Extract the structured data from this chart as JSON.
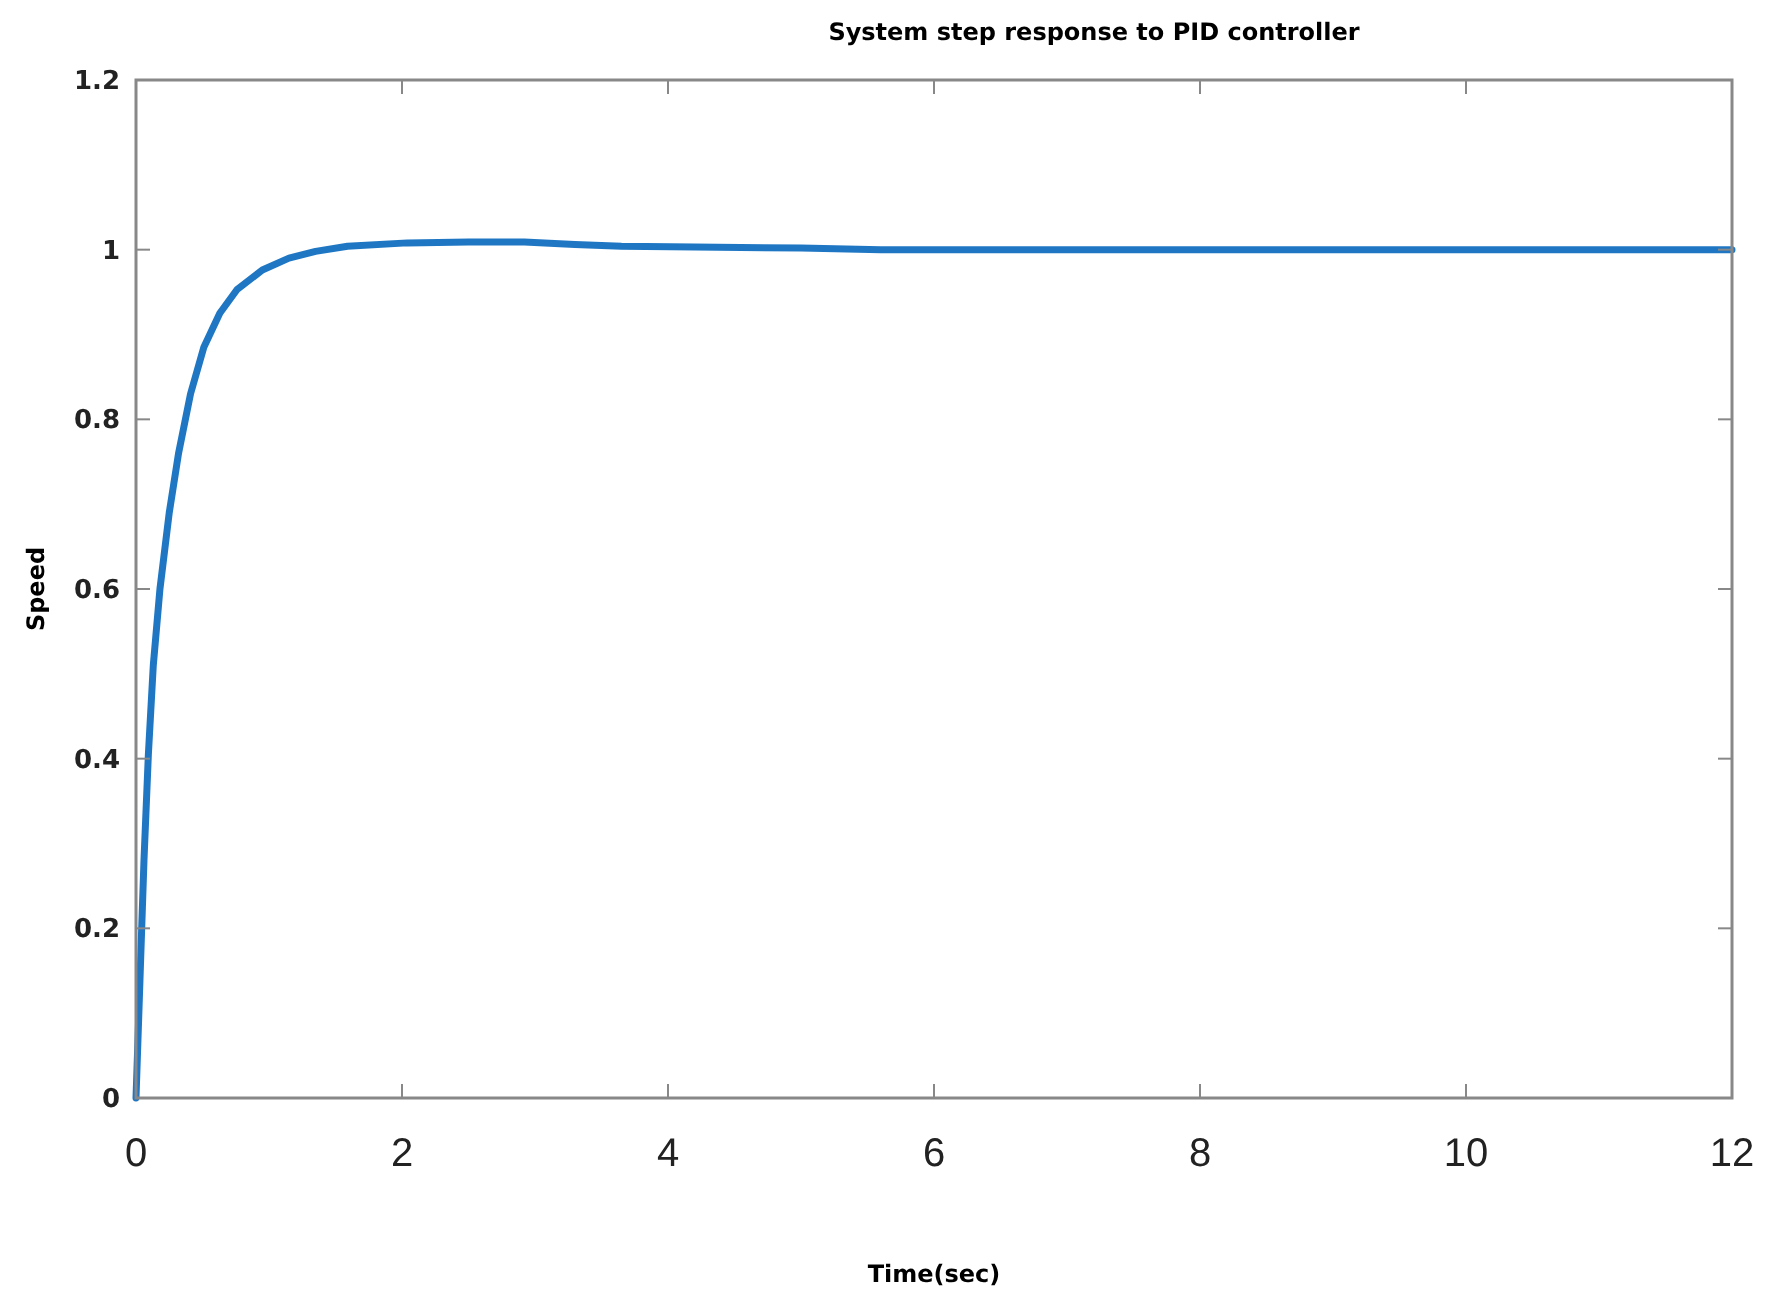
{
  "chart_data": {
    "type": "line",
    "title": "System step response to PID controller",
    "xlabel": "Time(sec)",
    "ylabel": "Speed",
    "series": [
      {
        "color": "#1f77c4",
        "x": [
          0,
          0.03,
          0.06,
          0.093,
          0.13,
          0.18,
          0.25,
          0.32,
          0.41,
          0.51,
          0.63,
          0.76,
          0.95,
          1.15,
          1.35,
          1.59,
          2.04,
          2.5,
          2.92,
          3.3,
          3.65,
          4.2,
          5,
          5.6,
          7,
          9,
          12
        ],
        "values": [
          0,
          0.14,
          0.28,
          0.405,
          0.51,
          0.6,
          0.69,
          0.76,
          0.83,
          0.885,
          0.925,
          0.953,
          0.976,
          0.99,
          0.998,
          1.004,
          1.008,
          1.009,
          1.009,
          1.006,
          1.004,
          1.003,
          1.002,
          1,
          1,
          1,
          1
        ]
      }
    ],
    "xlim": [
      0,
      12
    ],
    "ylim": [
      0,
      1.2
    ],
    "xticks": [
      0,
      2,
      4,
      6,
      8,
      10,
      12
    ],
    "yticks": [
      0,
      {
        "value": 0.2,
        "label": "0.2"
      },
      {
        "value": 0.4,
        "label": "0.4"
      },
      {
        "value": 0.6,
        "label": "0.6"
      },
      {
        "value": 0.8,
        "label": "0.8"
      },
      1,
      {
        "value": 1.2,
        "label": "1.2"
      }
    ],
    "grid": false,
    "marker": "none",
    "line_style": "solid"
  }
}
